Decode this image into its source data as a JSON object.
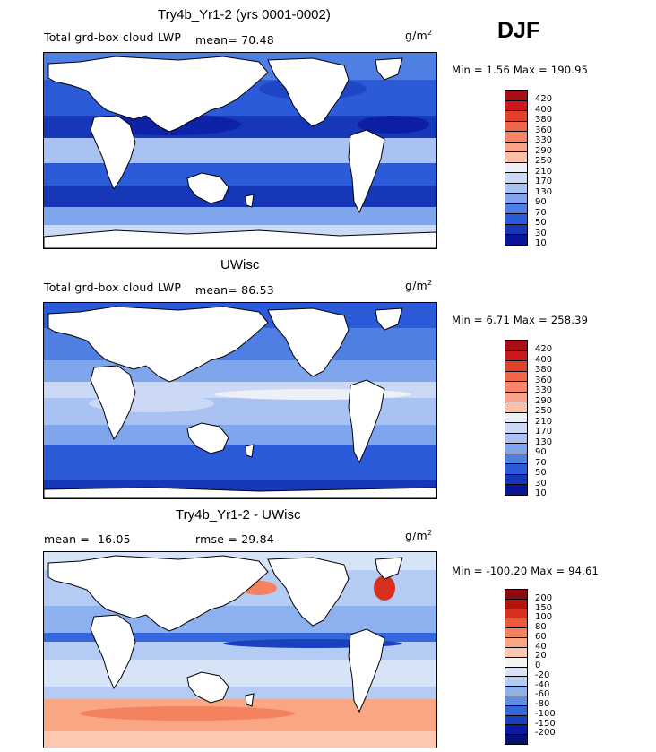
{
  "season": "DJF",
  "units_prefix": "g/m",
  "units_sup": "2",
  "panels": [
    {
      "title": "Try4b_Yr1-2 (yrs 0001-0002)",
      "subtitle": "Total grd-box cloud LWP",
      "mean_text": "mean=  70.48",
      "rmse_text": "",
      "minmax": "Min =   1.56 Max = 190.95",
      "colorbar": {
        "labels": [
          "420",
          "400",
          "380",
          "360",
          "330",
          "290",
          "250",
          "210",
          "170",
          "130",
          "90",
          "70",
          "50",
          "30",
          "10"
        ],
        "colors": [
          "#a50f15",
          "#cb181d",
          "#e0402b",
          "#ef6548",
          "#f6836a",
          "#fba38a",
          "#fcc0a8",
          "#eef0f7",
          "#cbd9f6",
          "#a9c2f2",
          "#7fa6ec",
          "#4f7fe3",
          "#2b5bd9",
          "#1638b8",
          "#08149a"
        ]
      }
    },
    {
      "title": "UWisc",
      "subtitle": "Total grd-box cloud LWP",
      "mean_text": "mean=  86.53",
      "rmse_text": "",
      "minmax": "Min =   6.71 Max = 258.39",
      "colorbar": {
        "labels": [
          "420",
          "400",
          "380",
          "360",
          "330",
          "290",
          "250",
          "210",
          "170",
          "130",
          "90",
          "70",
          "50",
          "30",
          "10"
        ],
        "colors": [
          "#a50f15",
          "#cb181d",
          "#e0402b",
          "#ef6548",
          "#f6836a",
          "#fba38a",
          "#fcc0a8",
          "#eef0f7",
          "#cbd9f6",
          "#a9c2f2",
          "#7fa6ec",
          "#4f7fe3",
          "#2b5bd9",
          "#1638b8",
          "#08149a"
        ]
      }
    },
    {
      "title": "Try4b_Yr1-2 - UWisc",
      "subtitle": "",
      "mean_text": "mean = -16.05",
      "rmse_text": "rmse =  29.84",
      "minmax": "Min = -100.20 Max =  94.61",
      "colorbar": {
        "labels": [
          "200",
          "150",
          "100",
          "80",
          "60",
          "40",
          "20",
          "0",
          "-20",
          "-40",
          "-60",
          "-80",
          "-100",
          "-150",
          "-200"
        ],
        "colors": [
          "#8b0a0a",
          "#b3140f",
          "#d7301f",
          "#ec5a3c",
          "#f4825e",
          "#f8a684",
          "#fcc9b0",
          "#f6f4f2",
          "#d7e3f7",
          "#b4cbf3",
          "#8db0ee",
          "#5f8ee6",
          "#3466dc",
          "#1a40c0",
          "#0a1a9e",
          "#06107a"
        ]
      }
    }
  ]
}
